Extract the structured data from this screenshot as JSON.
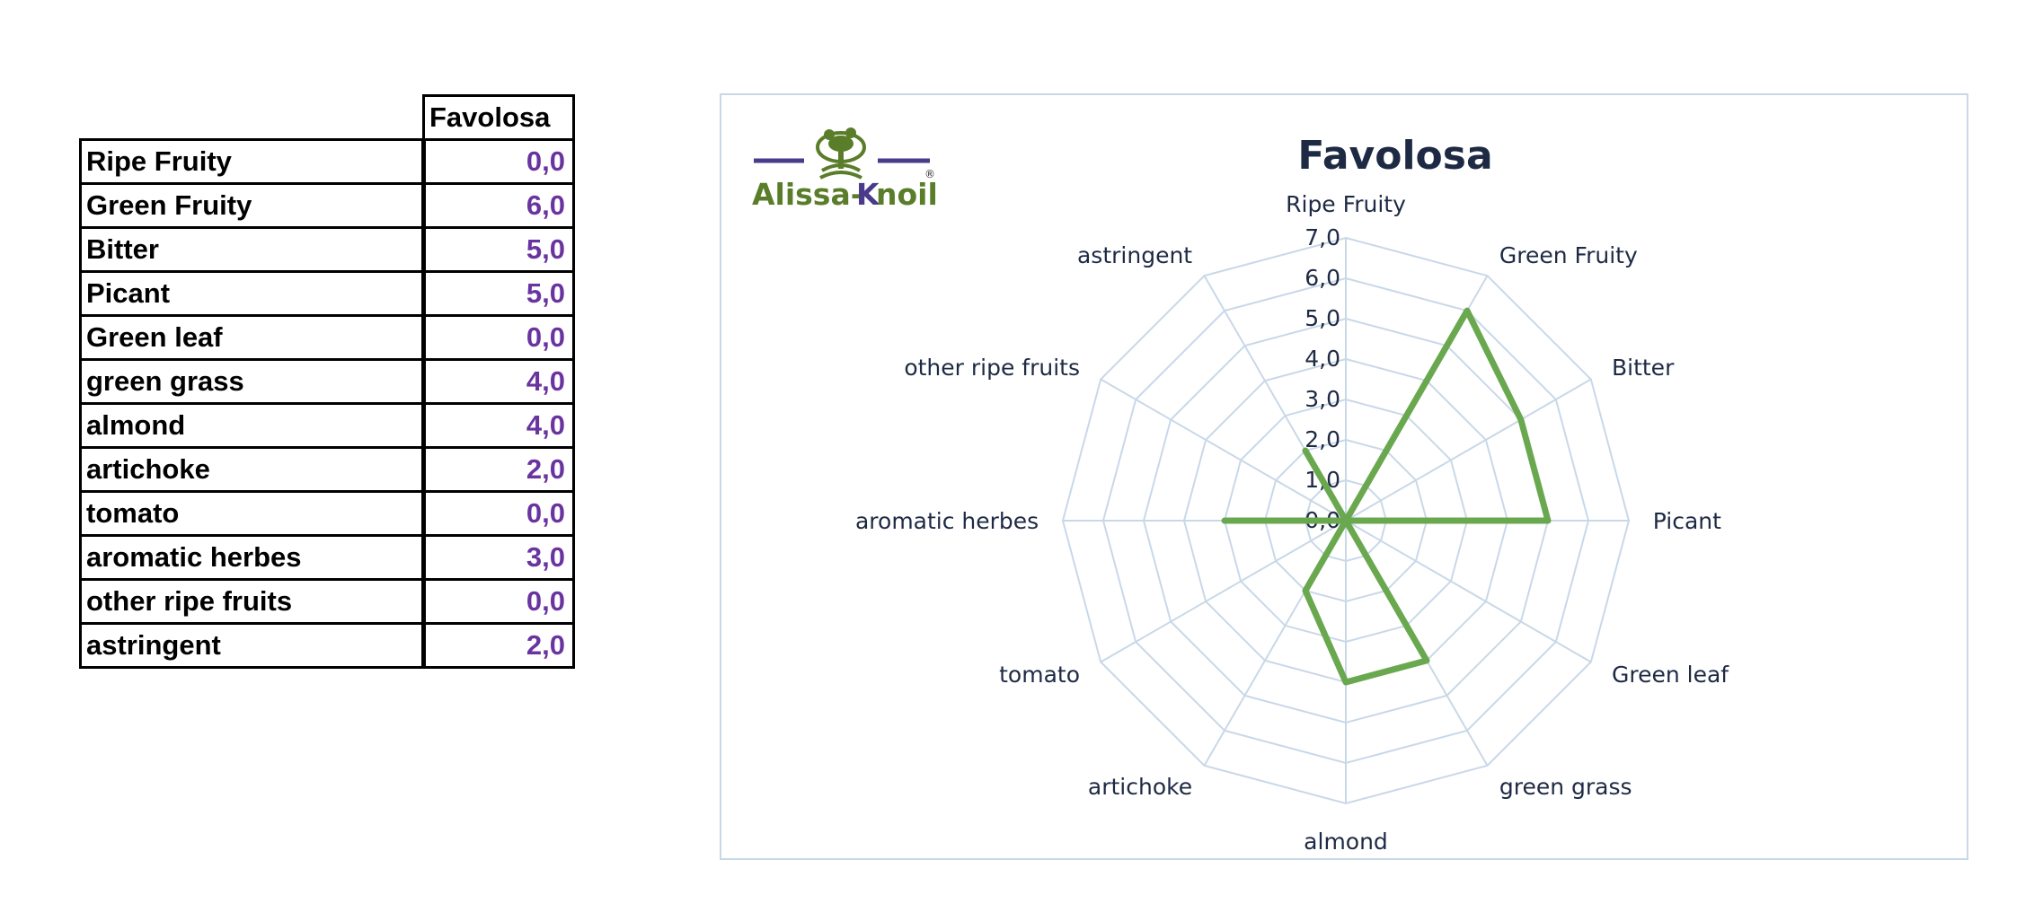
{
  "table": {
    "column_header": "Favolosa",
    "rows": [
      {
        "label": "Ripe Fruity",
        "value": "0,0"
      },
      {
        "label": "Green Fruity",
        "value": "6,0"
      },
      {
        "label": "Bitter",
        "value": "5,0"
      },
      {
        "label": "Picant",
        "value": "5,0"
      },
      {
        "label": "Green leaf",
        "value": "0,0"
      },
      {
        "label": "green grass",
        "value": "4,0"
      },
      {
        "label": "almond",
        "value": "4,0"
      },
      {
        "label": "artichoke",
        "value": "2,0"
      },
      {
        "label": "tomato",
        "value": "0,0"
      },
      {
        "label": "aromatic herbes",
        "value": "3,0"
      },
      {
        "label": "other ripe fruits",
        "value": "0,0"
      },
      {
        "label": "astringent",
        "value": "2,0"
      }
    ],
    "value_color": "#6a34a0"
  },
  "logo": {
    "text_left": "Alissa-",
    "text_k": "K",
    "text_right": "noil",
    "mark": "®",
    "green": "#5a7d2a",
    "purple": "#4a3a8c"
  },
  "chart_data": {
    "type": "radar",
    "title": "Favolosa",
    "categories": [
      "Ripe Fruity",
      "Green Fruity",
      "Bitter",
      "Picant",
      "Green leaf",
      "green grass",
      "almond",
      "artichoke",
      "tomato",
      "aromatic herbes",
      "other ripe fruits",
      "astringent"
    ],
    "series": [
      {
        "name": "",
        "values": [
          0,
          6,
          5,
          5,
          0,
          4,
          4,
          2,
          0,
          3,
          0,
          2
        ],
        "color": "#6aa84f"
      }
    ],
    "rlim": [
      0,
      7
    ],
    "tick_labels": [
      "0,0",
      "1,0",
      "2,0",
      "3,0",
      "4,0",
      "5,0",
      "6,0",
      "7,0"
    ],
    "grid": true,
    "grid_color": "#c9d8e8",
    "title_color": "#1e2a44"
  }
}
